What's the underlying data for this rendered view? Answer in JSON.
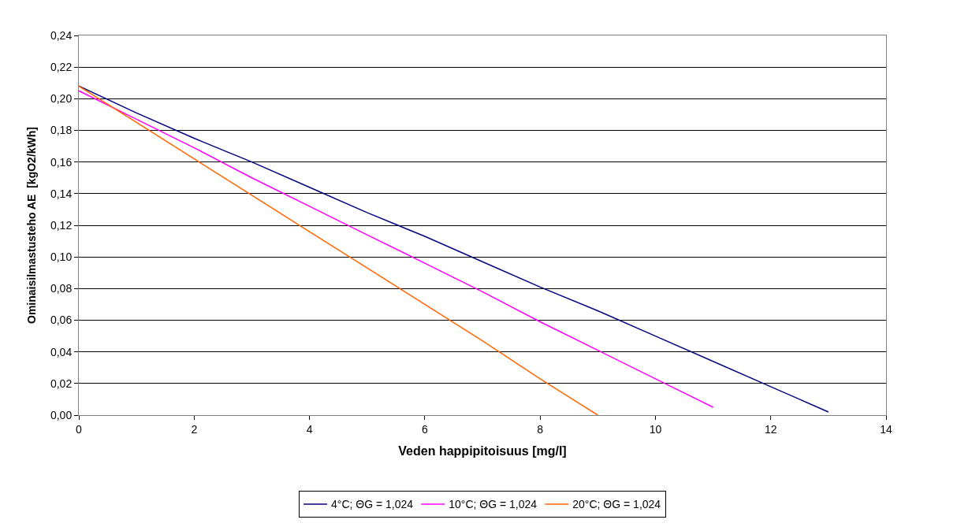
{
  "chart_data": {
    "type": "line",
    "xlabel": "Veden happipitoisuus [mg/l]",
    "ylabel": "Ominaisilmastusteho AE  [kgO2/kWh]",
    "xlim": [
      0,
      14
    ],
    "xticks": [
      0,
      2,
      4,
      6,
      8,
      10,
      12,
      14
    ],
    "ylim": [
      0,
      0.24
    ],
    "yticks": [
      {
        "value": 0,
        "label": "0,00"
      },
      {
        "value": 0.02,
        "label": "0,02"
      },
      {
        "value": 0.04,
        "label": "0,04"
      },
      {
        "value": 0.06,
        "label": "0,06"
      },
      {
        "value": 0.08,
        "label": "0,08"
      },
      {
        "value": 0.1,
        "label": "0,10"
      },
      {
        "value": 0.12,
        "label": "0,12"
      },
      {
        "value": 0.14,
        "label": "0,14"
      },
      {
        "value": 0.16,
        "label": "0,16"
      },
      {
        "value": 0.18,
        "label": "0,18"
      },
      {
        "value": 0.2,
        "label": "0,20"
      },
      {
        "value": 0.22,
        "label": "0,22"
      },
      {
        "value": 0.24,
        "label": "0,24"
      }
    ],
    "grid": "y",
    "legend": "bottom",
    "marker": "none",
    "line_style": "solid",
    "series": [
      {
        "name": "4°C; ΘG = 1,024",
        "color": "#000080",
        "x": [
          0,
          1,
          2,
          3,
          4,
          5,
          6,
          7,
          8,
          9,
          10,
          11,
          12,
          13
        ],
        "values": [
          0.208,
          0.191,
          0.175,
          0.16,
          0.144,
          0.128,
          0.113,
          0.097,
          0.081,
          0.066,
          0.05,
          0.034,
          0.018,
          0.002
        ]
      },
      {
        "name": "10°C; ΘG = 1,024",
        "color": "#ff00ff",
        "x": [
          0,
          1,
          2,
          3,
          4,
          5,
          6,
          7,
          8,
          9,
          10,
          11
        ],
        "values": [
          0.205,
          0.187,
          0.169,
          0.15,
          0.132,
          0.114,
          0.096,
          0.078,
          0.059,
          0.041,
          0.023,
          0.005
        ]
      },
      {
        "name": "20°C; ΘG = 1,024",
        "color": "#ff6600",
        "x": [
          0,
          1,
          2,
          3,
          4,
          5,
          6,
          7,
          8,
          9
        ],
        "values": [
          0.208,
          0.185,
          0.162,
          0.139,
          0.116,
          0.093,
          0.07,
          0.047,
          0.023,
          0.0
        ]
      }
    ]
  }
}
